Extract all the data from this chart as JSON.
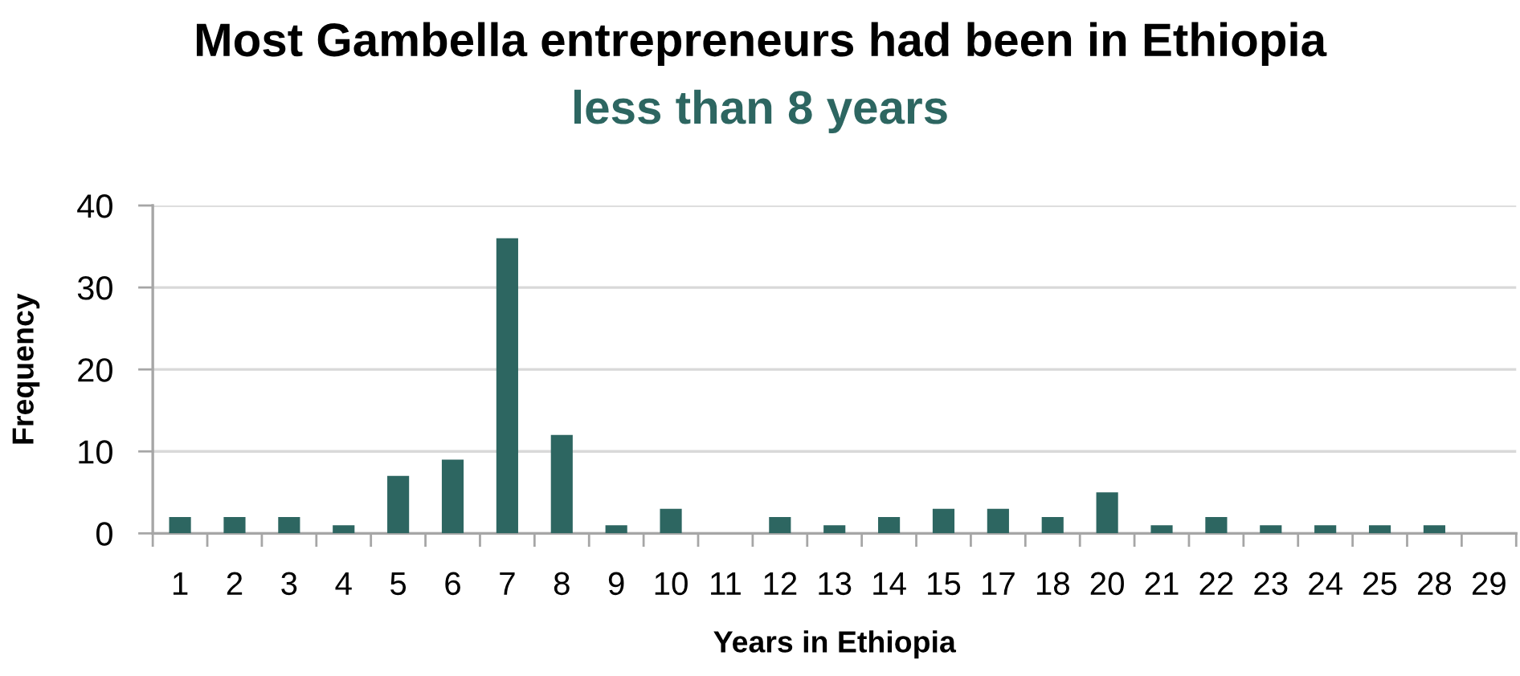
{
  "chart_data": {
    "type": "bar",
    "title": "Most Gambella entrepreneurs had been in Ethiopia",
    "subtitle": "less than 8 years",
    "xlabel": "Years in Ethiopia",
    "ylabel": "Frequency",
    "categories": [
      "1",
      "2",
      "3",
      "4",
      "5",
      "6",
      "7",
      "8",
      "9",
      "10",
      "11",
      "12",
      "13",
      "14",
      "15",
      "17",
      "18",
      "20",
      "21",
      "22",
      "23",
      "24",
      "25",
      "28",
      "29"
    ],
    "values": [
      2,
      2,
      2,
      1,
      7,
      9,
      36,
      12,
      1,
      3,
      0,
      2,
      1,
      2,
      3,
      3,
      2,
      5,
      1,
      2,
      1,
      1,
      1,
      1,
      0
    ],
    "color": "#2d6661",
    "ylim": [
      0,
      40
    ],
    "yticks": [
      0,
      10,
      20,
      30,
      40
    ],
    "grid": "y"
  }
}
